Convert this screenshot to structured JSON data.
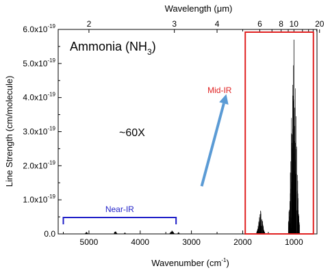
{
  "chart_data": {
    "type": "bar",
    "title": "",
    "xlabel": "Wavenumber (cm",
    "xlabel_sup": "-1",
    "xlabel_close": ")",
    "x2label": "Wavelength (",
    "x2label_unit": "μ",
    "x2label_close": "m)",
    "ylabel": "Line Strength (cm/molecule)",
    "xlim": [
      5600,
      550
    ],
    "ylim": [
      0,
      6e-19
    ],
    "x_reversed": true,
    "x_ticks": [
      {
        "value": 5000,
        "label": "5000"
      },
      {
        "value": 4000,
        "label": "4000"
      },
      {
        "value": 3000,
        "label": "3000"
      },
      {
        "value": 2000,
        "label": "2000"
      },
      {
        "value": 1000,
        "label": "1000"
      }
    ],
    "x2_ticks": [
      {
        "um": 2,
        "label": "2"
      },
      {
        "um": 3,
        "label": "3"
      },
      {
        "um": 4,
        "label": "4"
      },
      {
        "um": 6,
        "label": "6"
      },
      {
        "um": 8,
        "label": "8"
      },
      {
        "um": 10,
        "label": "10"
      },
      {
        "um": 20,
        "label": "20"
      }
    ],
    "x2_minor_ticks": [
      5,
      7,
      9,
      12,
      14,
      16,
      18
    ],
    "y_ticks": [
      {
        "value": 0,
        "mant": "0.0",
        "exp": ""
      },
      {
        "value": 1e-19,
        "mant": "1.0x10",
        "exp": "-19"
      },
      {
        "value": 2e-19,
        "mant": "2.0x10",
        "exp": "-19"
      },
      {
        "value": 3e-19,
        "mant": "3.0x10",
        "exp": "-19"
      },
      {
        "value": 4e-19,
        "mant": "4.0x10",
        "exp": "-19"
      },
      {
        "value": 5e-19,
        "mant": "5.0x10",
        "exp": "-19"
      },
      {
        "value": 6e-19,
        "mant": "6.0x10",
        "exp": "-19"
      }
    ],
    "annotations": {
      "molecule": "Ammonia (NH",
      "molecule_sub": "3",
      "molecule_close": ")",
      "ratio": "~60X",
      "near_ir": "Near-IR",
      "mid_ir": "Mid-IR"
    },
    "near_ir_range": [
      5500,
      3300
    ],
    "mid_ir_range": [
      1950,
      620
    ],
    "arrow": {
      "from": [
        2800,
        1.4e-19
      ],
      "to": [
        2320,
        4.1e-19
      ]
    },
    "colors": {
      "near_ir": "#1f1fc8",
      "mid_ir": "#e02020",
      "arrow": "#5b9bd5",
      "lines": "#000000"
    },
    "series": [
      {
        "bands": [
          {
            "center": 5050,
            "width": 80,
            "peak": 6e-21
          },
          {
            "center": 4480,
            "width": 90,
            "peak": 7e-21
          },
          {
            "center": 4300,
            "width": 60,
            "peak": 4e-21
          },
          {
            "center": 3380,
            "width": 120,
            "peak": 1e-20
          },
          {
            "center": 3250,
            "width": 60,
            "peak": 5e-21
          },
          {
            "center": 1650,
            "width": 170,
            "peak": 6.8e-20
          },
          {
            "center": 1000,
            "width": 220,
            "peak": 5.7e-19
          }
        ]
      }
    ]
  }
}
